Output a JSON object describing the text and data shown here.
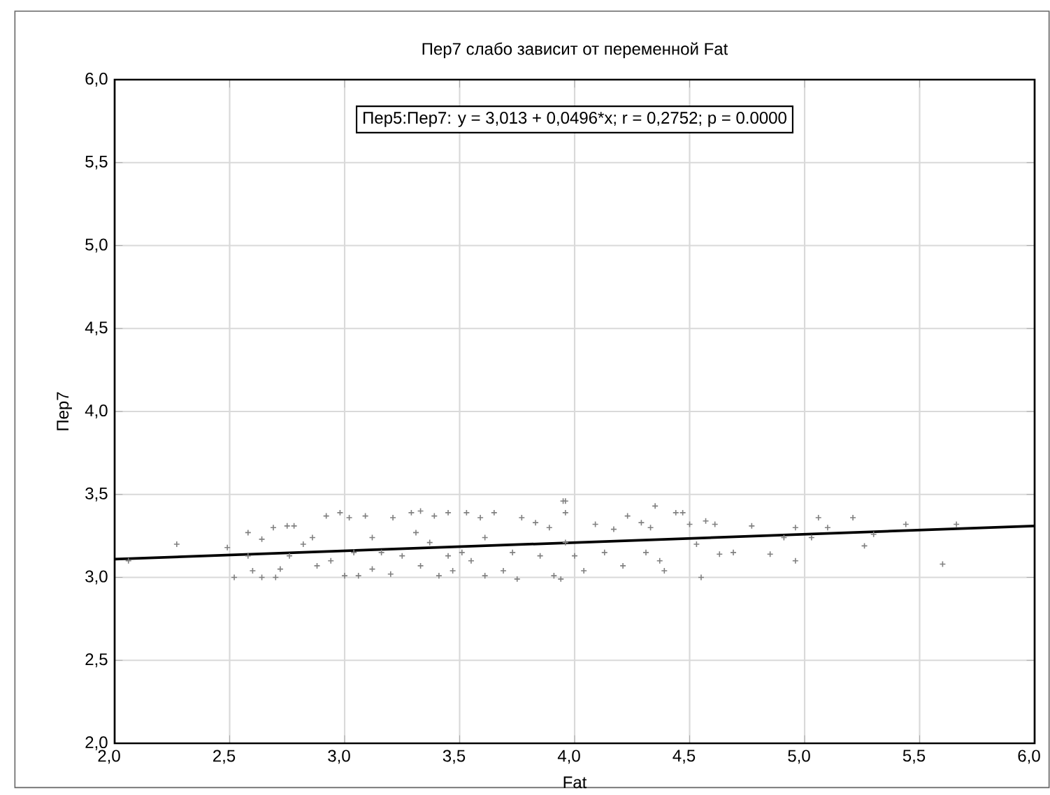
{
  "chart_data": {
    "type": "scatter",
    "title": "Пер7 слабо зависит от переменной Fat",
    "xlabel": "Fat",
    "ylabel": "Пер7",
    "annotations": [
      "Пер5:Пер7:   y = 3,013 + 0,0496*x;  r = 0,2752; p = 0.0000"
    ],
    "xlim": [
      2,
      6
    ],
    "ylim": [
      2,
      6
    ],
    "xticks": [
      {
        "value": 2,
        "label": "2,0"
      },
      {
        "value": 2.5,
        "label": "2,5"
      },
      {
        "value": 3,
        "label": "3,0"
      },
      {
        "value": 3.5,
        "label": "3,5"
      },
      {
        "value": 4,
        "label": "4,0"
      },
      {
        "value": 4.5,
        "label": "4,5"
      },
      {
        "value": 5,
        "label": "5,0"
      },
      {
        "value": 5.5,
        "label": "5,5"
      },
      {
        "value": 6,
        "label": "6,0"
      }
    ],
    "yticks": [
      {
        "value": 2,
        "label": "2,0"
      },
      {
        "value": 2.5,
        "label": "2,5"
      },
      {
        "value": 3,
        "label": "3,0"
      },
      {
        "value": 3.5,
        "label": "3,5"
      },
      {
        "value": 4,
        "label": "4,0"
      },
      {
        "value": 4.5,
        "label": "4,5"
      },
      {
        "value": 5,
        "label": "5,0"
      },
      {
        "value": 5.5,
        "label": "5,5"
      },
      {
        "value": 6,
        "label": "6,0"
      }
    ],
    "grid": true,
    "series": [
      {
        "marker": "cross",
        "color": "#808080",
        "x": [
          2.27,
          2.06,
          2.52,
          2.6,
          2.58,
          2.64,
          2.69,
          2.75,
          2.78,
          2.7,
          2.64,
          2.49,
          2.58,
          2.72,
          2.82,
          2.86,
          2.92,
          2.98,
          3.02,
          3.09,
          2.94,
          3.0,
          3.06,
          3.04,
          3.12,
          3.12,
          3.2,
          3.21,
          3.29,
          3.33,
          3.39,
          3.45,
          3.31,
          3.37,
          3.25,
          3.33,
          3.41,
          3.47,
          3.51,
          3.53,
          3.59,
          3.65,
          3.61,
          3.55,
          3.61,
          3.69,
          3.75,
          3.77,
          3.83,
          3.89,
          3.96,
          3.91,
          3.85,
          3.73,
          3.45,
          3.16,
          2.88,
          2.76,
          3.96,
          3.95,
          3.96,
          4.0,
          4.04,
          3.94,
          4.09,
          4.17,
          4.23,
          4.29,
          4.35,
          4.33,
          4.21,
          4.39,
          4.37,
          4.31,
          4.13,
          4.44,
          4.47,
          4.5,
          4.57,
          4.61,
          4.53,
          4.63,
          4.69,
          4.55,
          4.77,
          4.85,
          4.91,
          4.96,
          4.96,
          5.03,
          5.06,
          5.1,
          5.21,
          5.26,
          5.3,
          5.44,
          5.6,
          5.66
        ],
        "values": [
          3.2,
          3.1,
          3.0,
          3.04,
          3.27,
          3.23,
          3.3,
          3.31,
          3.31,
          3.0,
          3.0,
          3.18,
          3.13,
          3.05,
          3.2,
          3.24,
          3.37,
          3.39,
          3.36,
          3.37,
          3.1,
          3.01,
          3.01,
          3.15,
          3.24,
          3.05,
          3.02,
          3.36,
          3.39,
          3.4,
          3.37,
          3.39,
          3.27,
          3.21,
          3.13,
          3.07,
          3.01,
          3.04,
          3.15,
          3.39,
          3.36,
          3.39,
          3.24,
          3.1,
          3.01,
          3.04,
          2.99,
          3.36,
          3.33,
          3.3,
          3.46,
          3.01,
          3.13,
          3.15,
          3.13,
          3.15,
          3.07,
          3.13,
          3.21,
          3.46,
          3.39,
          3.13,
          3.04,
          2.99,
          3.32,
          3.29,
          3.37,
          3.33,
          3.43,
          3.3,
          3.07,
          3.04,
          3.1,
          3.15,
          3.15,
          3.39,
          3.39,
          3.32,
          3.34,
          3.32,
          3.2,
          3.14,
          3.15,
          3.0,
          3.31,
          3.14,
          3.24,
          3.1,
          3.3,
          3.24,
          3.36,
          3.3,
          3.36,
          3.19,
          3.26,
          3.32,
          3.08,
          3.32
        ]
      },
      {
        "type": "line",
        "color": "#000000",
        "x": [
          2,
          6
        ],
        "values": [
          3.11,
          3.31
        ]
      }
    ]
  }
}
